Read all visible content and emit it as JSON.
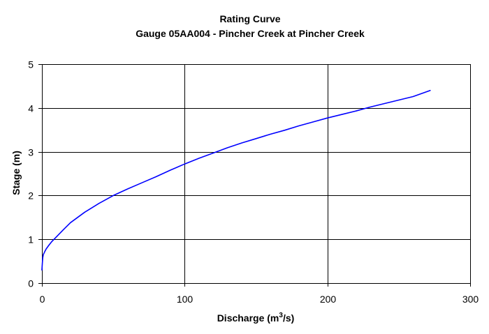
{
  "chart_data": {
    "type": "line",
    "title": "Rating Curve",
    "subtitle": "Gauge 05AA004 - Pincher Creek at Pincher Creek",
    "xlabel_main": "Discharge (m",
    "xlabel_sup": "3",
    "xlabel_tail": "/s)",
    "ylabel": "Stage (m)",
    "xlim": [
      0,
      300
    ],
    "ylim": [
      0,
      5
    ],
    "xticks": [
      "0",
      "100",
      "200",
      "300"
    ],
    "yticks": [
      "0",
      "1",
      "2",
      "3",
      "4",
      "5"
    ],
    "grid": true,
    "line_color": "#0000ff",
    "series": [
      {
        "x": [
          0,
          0.1,
          0.3,
          0.6,
          1,
          2,
          3,
          5,
          7,
          10,
          15,
          20,
          25,
          30,
          40,
          50,
          60,
          70,
          80,
          90,
          100,
          110,
          120,
          130,
          140,
          150,
          160,
          170,
          180,
          190,
          200,
          210,
          220,
          230,
          240,
          250,
          260,
          272
        ],
        "y": [
          0.3,
          0.35,
          0.45,
          0.58,
          0.65,
          0.72,
          0.78,
          0.87,
          0.95,
          1.05,
          1.22,
          1.38,
          1.5,
          1.62,
          1.82,
          2.0,
          2.15,
          2.29,
          2.43,
          2.58,
          2.72,
          2.85,
          2.97,
          3.09,
          3.2,
          3.3,
          3.4,
          3.49,
          3.59,
          3.68,
          3.77,
          3.85,
          3.93,
          4.02,
          4.1,
          4.18,
          4.26,
          4.4
        ]
      }
    ]
  }
}
